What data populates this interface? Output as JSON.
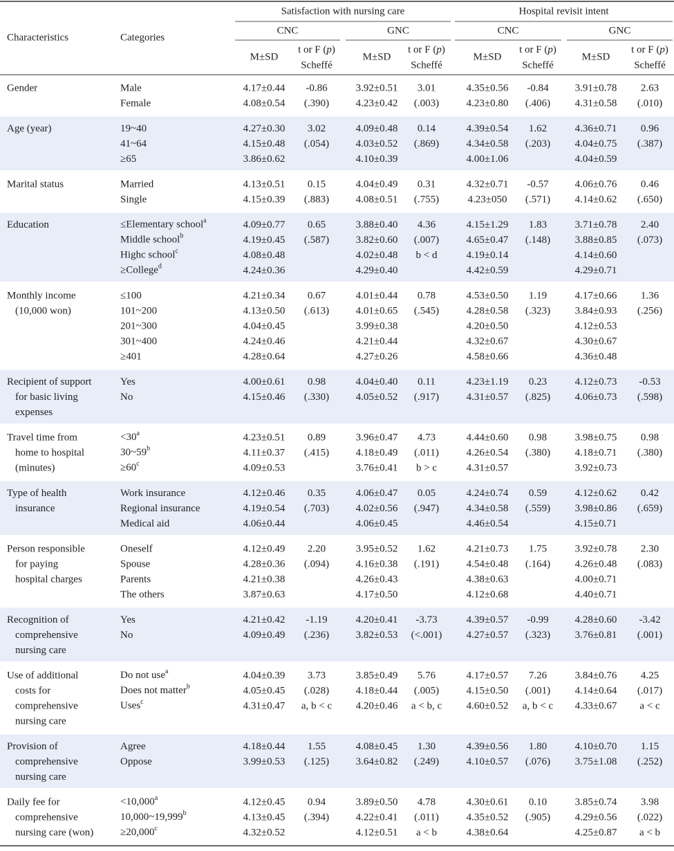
{
  "header": {
    "characteristics": "Characteristics",
    "categories": "Categories",
    "groups": [
      {
        "title": "Satisfaction with nursing care",
        "subgroups": [
          "CNC",
          "GNC"
        ]
      },
      {
        "title": "Hospital revisit intent",
        "subgroups": [
          "CNC",
          "GNC"
        ]
      }
    ],
    "msd": "M±SD",
    "test": [
      "t or F (",
      "p",
      ")",
      "Scheffé"
    ]
  },
  "rows": [
    {
      "characteristic": [
        "Gender"
      ],
      "categories": [
        "Male",
        "Female"
      ],
      "cols": [
        {
          "msd": [
            "4.17±0.44",
            "4.08±0.54"
          ],
          "test": [
            "-0.86",
            "(.390)"
          ]
        },
        {
          "msd": [
            "3.92±0.51",
            "4.23±0.42"
          ],
          "test": [
            "3.01",
            "(.003)"
          ]
        },
        {
          "msd": [
            "4.35±0.56",
            "4.23±0.80"
          ],
          "test": [
            "-0.84",
            "(.406)"
          ]
        },
        {
          "msd": [
            "3.91±0.78",
            "4.31±0.58"
          ],
          "test": [
            "2.63",
            "(.010)"
          ]
        }
      ]
    },
    {
      "characteristic": [
        "Age (year)"
      ],
      "categories": [
        "19~40",
        "41~64",
        "≥65"
      ],
      "cols": [
        {
          "msd": [
            "4.27±0.30",
            "4.15±0.48",
            "3.86±0.62"
          ],
          "test": [
            "3.02",
            "(.054)"
          ]
        },
        {
          "msd": [
            "4.09±0.48",
            "4.03±0.52",
            "4.10±0.39"
          ],
          "test": [
            "0.14",
            "(.869)"
          ]
        },
        {
          "msd": [
            "4.39±0.54",
            "4.34±0.58",
            "4.00±1.06"
          ],
          "test": [
            "1.62",
            "(.203)"
          ]
        },
        {
          "msd": [
            "4.36±0.71",
            "4.04±0.75",
            "4.04±0.59"
          ],
          "test": [
            "0.96",
            "(.387)"
          ]
        }
      ]
    },
    {
      "characteristic": [
        "Marital status"
      ],
      "categories": [
        "Married",
        "Single"
      ],
      "cols": [
        {
          "msd": [
            "4.13±0.51",
            "4.15±0.39"
          ],
          "test": [
            "0.15",
            "(.883)"
          ]
        },
        {
          "msd": [
            "4.04±0.49",
            "4.08±0.51"
          ],
          "test": [
            "0.31",
            "(.755)"
          ]
        },
        {
          "msd": [
            "4.32±0.71",
            "4.23±050"
          ],
          "test": [
            "-0.57",
            "(.571)"
          ]
        },
        {
          "msd": [
            "4.06±0.76",
            "4.14±0.62"
          ],
          "test": [
            "0.46",
            "(.650)"
          ]
        }
      ]
    },
    {
      "characteristic": [
        "Education"
      ],
      "categories": [
        {
          "text": "≤Elementary school",
          "sup": "a"
        },
        {
          "text": "Middle school",
          "sup": "b"
        },
        {
          "text": "Highc school",
          "sup": "c"
        },
        {
          "text": "≥College",
          "sup": "d"
        }
      ],
      "cols": [
        {
          "msd": [
            "4.09±0.77",
            "4.19±0.45",
            "4.08±0.48",
            "4.24±0.36"
          ],
          "test": [
            "0.65",
            "(.587)"
          ]
        },
        {
          "msd": [
            "3.88±0.40",
            "3.82±0.60",
            "4.02±0.48",
            "4.29±0.40"
          ],
          "test": [
            "4.36",
            "(.007)",
            "b < d"
          ]
        },
        {
          "msd": [
            "4.15±1.29",
            "4.65±0.47",
            "4.19±0.14",
            "4.42±0.59"
          ],
          "test": [
            "1.83",
            "(.148)"
          ]
        },
        {
          "msd": [
            "3.71±0.78",
            "3.88±0.85",
            "4.14±0.60",
            "4.29±0.71"
          ],
          "test": [
            "2.40",
            "(.073)"
          ]
        }
      ]
    },
    {
      "characteristic": [
        "Monthly income",
        "(10,000 won)"
      ],
      "categories": [
        "≤100",
        "101~200",
        "201~300",
        "301~400",
        "≥401"
      ],
      "cols": [
        {
          "msd": [
            "4.21±0.34",
            "4.13±0.50",
            "4.04±0.45",
            "4.24±0.46",
            "4.28±0.64"
          ],
          "test": [
            "0.67",
            "(.613)"
          ]
        },
        {
          "msd": [
            "4.01±0.44",
            "4.01±0.65",
            "3.99±0.38",
            "4.21±0.44",
            "4.27±0.26"
          ],
          "test": [
            "0.78",
            "(.545)"
          ]
        },
        {
          "msd": [
            "4.53±0.50",
            "4.28±0.58",
            "4.20±0.50",
            "4.32±0.67",
            "4.58±0.66"
          ],
          "test": [
            "1.19",
            "(.323)"
          ]
        },
        {
          "msd": [
            "4.17±0.66",
            "3.84±0.93",
            "4.12±0.53",
            "4.30±0.67",
            "4.36±0.48"
          ],
          "test": [
            "1.36",
            "(.256)"
          ]
        }
      ]
    },
    {
      "characteristic": [
        "Recipient of support",
        "for basic living",
        "expenses"
      ],
      "categories": [
        "Yes",
        "No"
      ],
      "cols": [
        {
          "msd": [
            "4.00±0.61",
            "4.15±0.46"
          ],
          "test": [
            "0.98",
            "(.330)"
          ]
        },
        {
          "msd": [
            "4.04±0.40",
            "4.05±0.52"
          ],
          "test": [
            "0.11",
            "(.917)"
          ]
        },
        {
          "msd": [
            "4.23±1.19",
            "4.31±0.57"
          ],
          "test": [
            "0.23",
            "(.825)"
          ]
        },
        {
          "msd": [
            "4.12±0.73",
            "4.06±0.73"
          ],
          "test": [
            "-0.53",
            "(.598)"
          ]
        }
      ]
    },
    {
      "characteristic": [
        "Travel time from",
        "home to hospital",
        "(minutes)"
      ],
      "categories": [
        {
          "text": "<30",
          "sup": "a"
        },
        {
          "text": "30~59",
          "sup": "b"
        },
        {
          "text": "≥60",
          "sup": "c"
        }
      ],
      "cols": [
        {
          "msd": [
            "4.23±0.51",
            "4.11±0.37",
            "4.09±0.53"
          ],
          "test": [
            "0.89",
            "(.415)"
          ]
        },
        {
          "msd": [
            "3.96±0.47",
            "4.18±0.49",
            "3.76±0.41"
          ],
          "test": [
            "4.73",
            "(.011)",
            "b > c"
          ]
        },
        {
          "msd": [
            "4.44±0.60",
            "4.26±0.54",
            "4.31±0.57"
          ],
          "test": [
            "0.98",
            "(.380)"
          ]
        },
        {
          "msd": [
            "3.98±0.75",
            "4.18±0.71",
            "3.92±0.73"
          ],
          "test": [
            "0.98",
            "(.380)"
          ]
        }
      ]
    },
    {
      "characteristic": [
        "Type of health",
        "insurance"
      ],
      "categories": [
        "Work insurance",
        "Regional insurance",
        "Medical aid"
      ],
      "cols": [
        {
          "msd": [
            "4.12±0.46",
            "4.19±0.54",
            "4.06±0.44"
          ],
          "test": [
            "0.35",
            "(.703)"
          ]
        },
        {
          "msd": [
            "4.06±0.47",
            "4.02±0.56",
            "4.06±0.45"
          ],
          "test": [
            "0.05",
            "(.947)"
          ]
        },
        {
          "msd": [
            "4.24±0.74",
            "4.34±0.58",
            "4.46±0.54"
          ],
          "test": [
            "0.59",
            "(.559)"
          ]
        },
        {
          "msd": [
            "4.12±0.62",
            "3.98±0.86",
            "4.15±0.71"
          ],
          "test": [
            "0.42",
            "(.659)"
          ]
        }
      ]
    },
    {
      "characteristic": [
        "Person responsible",
        "for paying",
        "hospital charges"
      ],
      "categories": [
        "Oneself",
        "Spouse",
        "Parents",
        "The others"
      ],
      "cols": [
        {
          "msd": [
            "4.12±0.49",
            "4.28±0.36",
            "4.21±0.38",
            "3.87±0.63"
          ],
          "test": [
            "2.20",
            "(.094)"
          ]
        },
        {
          "msd": [
            "3.95±0.52",
            "4.16±0.38",
            "4.26±0.43",
            "4.17±0.50"
          ],
          "test": [
            "1.62",
            "(.191)"
          ]
        },
        {
          "msd": [
            "4.21±0.73",
            "4.54±0.48",
            "4.38±0.63",
            "4.12±0.68"
          ],
          "test": [
            "1.75",
            "(.164)"
          ]
        },
        {
          "msd": [
            "3.92±0.78",
            "4.26±0.48",
            "4.00±0.71",
            "4.40±0.71"
          ],
          "test": [
            "2.30",
            "(.083)"
          ]
        }
      ]
    },
    {
      "characteristic": [
        "Recognition of",
        "comprehensive",
        "nursing care"
      ],
      "categories": [
        "Yes",
        "No"
      ],
      "cols": [
        {
          "msd": [
            "4.21±0.42",
            "4.09±0.49"
          ],
          "test": [
            "-1.19",
            "(.236)"
          ]
        },
        {
          "msd": [
            "4.20±0.41",
            "3.82±0.53"
          ],
          "test": [
            "-3.73",
            "(<.001)"
          ]
        },
        {
          "msd": [
            "4.39±0.57",
            "4.27±0.57"
          ],
          "test": [
            "-0.99",
            "(.323)"
          ]
        },
        {
          "msd": [
            "4.28±0.60",
            "3.76±0.81"
          ],
          "test": [
            "-3.42",
            "(.001)"
          ]
        }
      ]
    },
    {
      "characteristic": [
        "Use of additional",
        "costs for",
        "comprehensive",
        "nursing care"
      ],
      "categories": [
        {
          "text": "Do not use",
          "sup": "a"
        },
        {
          "text": "Does not matter",
          "sup": "b"
        },
        {
          "text": "Uses",
          "sup": "c"
        }
      ],
      "cols": [
        {
          "msd": [
            "4.04±0.39",
            "4.05±0.45",
            "4.31±0.47"
          ],
          "test": [
            "3.73",
            "(.028)",
            "a, b < c"
          ]
        },
        {
          "msd": [
            "3.85±0.49",
            "4.18±0.44",
            "4.20±0.46"
          ],
          "test": [
            "5.76",
            "(.005)",
            "a < b, c"
          ]
        },
        {
          "msd": [
            "4.17±0.57",
            "4.15±0.50",
            "4.60±0.52"
          ],
          "test": [
            "7.26",
            "(.001)",
            "a, b < c"
          ]
        },
        {
          "msd": [
            "3.84±0.76",
            "4.14±0.64",
            "4.33±0.67"
          ],
          "test": [
            "4.25",
            "(.017)",
            "a < c"
          ]
        }
      ]
    },
    {
      "characteristic": [
        "Provision of",
        "comprehensive",
        "nursing care"
      ],
      "categories": [
        "Agree",
        "Oppose"
      ],
      "cols": [
        {
          "msd": [
            "4.18±0.44",
            "3.99±0.53"
          ],
          "test": [
            "1.55",
            "(.125)"
          ]
        },
        {
          "msd": [
            "4.08±0.45",
            "3.64±0.82"
          ],
          "test": [
            "1.30",
            "(.249)"
          ]
        },
        {
          "msd": [
            "4.39±0.56",
            "4.10±0.57"
          ],
          "test": [
            "1.80",
            "(.076)"
          ]
        },
        {
          "msd": [
            "4.10±0.70",
            "3.75±1.08"
          ],
          "test": [
            "1.15",
            "(.252)"
          ]
        }
      ]
    },
    {
      "characteristic": [
        "Daily fee for",
        "comprehensive",
        "nursing care (won)"
      ],
      "categories": [
        {
          "text": "<10,000",
          "sup": "a"
        },
        {
          "text": "10,000~19,999",
          "sup": "b"
        },
        {
          "text": "≥20,000",
          "sup": "c"
        }
      ],
      "cols": [
        {
          "msd": [
            "4.12±0.45",
            "4.13±0.45",
            "4.32±0.52"
          ],
          "test": [
            "0.94",
            "(.394)"
          ]
        },
        {
          "msd": [
            "3.89±0.50",
            "4.22±0.41",
            "4.12±0.51"
          ],
          "test": [
            "4.78",
            "(.011)",
            "a < b"
          ]
        },
        {
          "msd": [
            "4.30±0.61",
            "4.35±0.52",
            "4.38±0.64"
          ],
          "test": [
            "0.10",
            "(.905)"
          ]
        },
        {
          "msd": [
            "3.85±0.74",
            "4.29±0.56",
            "4.25±0.87"
          ],
          "test": [
            "3.98",
            "(.022)",
            "a < b"
          ]
        }
      ]
    }
  ]
}
